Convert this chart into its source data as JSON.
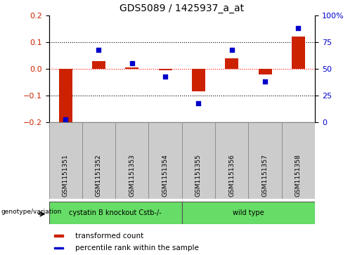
{
  "title": "GDS5089 / 1425937_a_at",
  "samples": [
    "GSM1151351",
    "GSM1151352",
    "GSM1151353",
    "GSM1151354",
    "GSM1151355",
    "GSM1151356",
    "GSM1151357",
    "GSM1151358"
  ],
  "transformed_count": [
    -0.215,
    0.03,
    0.005,
    -0.005,
    -0.085,
    0.04,
    -0.02,
    0.12
  ],
  "percentile_rank": [
    3,
    68,
    55,
    43,
    18,
    68,
    38,
    88
  ],
  "group1_label": "cystatin B knockout Cstb-/-",
  "group2_label": "wild type",
  "group1_samples": 4,
  "group2_samples": 4,
  "group_label": "genotype/variation",
  "ylim_left": [
    -0.2,
    0.2
  ],
  "ylim_right": [
    0,
    100
  ],
  "yticks_left": [
    -0.2,
    -0.1,
    0.0,
    0.1,
    0.2
  ],
  "yticks_right": [
    0,
    25,
    50,
    75,
    100
  ],
  "bar_color": "#cc2200",
  "dot_color": "#0000cc",
  "legend_items": [
    "transformed count",
    "percentile rank within the sample"
  ],
  "axis_label_color_left": "#cc2200",
  "axis_label_color_right": "#0000cc",
  "bg_color": "#ffffff",
  "plot_bg_color": "#ffffff",
  "xlabel_tick_box_color": "#cccccc",
  "group_box_color": "#66dd66",
  "bar_width": 0.4
}
